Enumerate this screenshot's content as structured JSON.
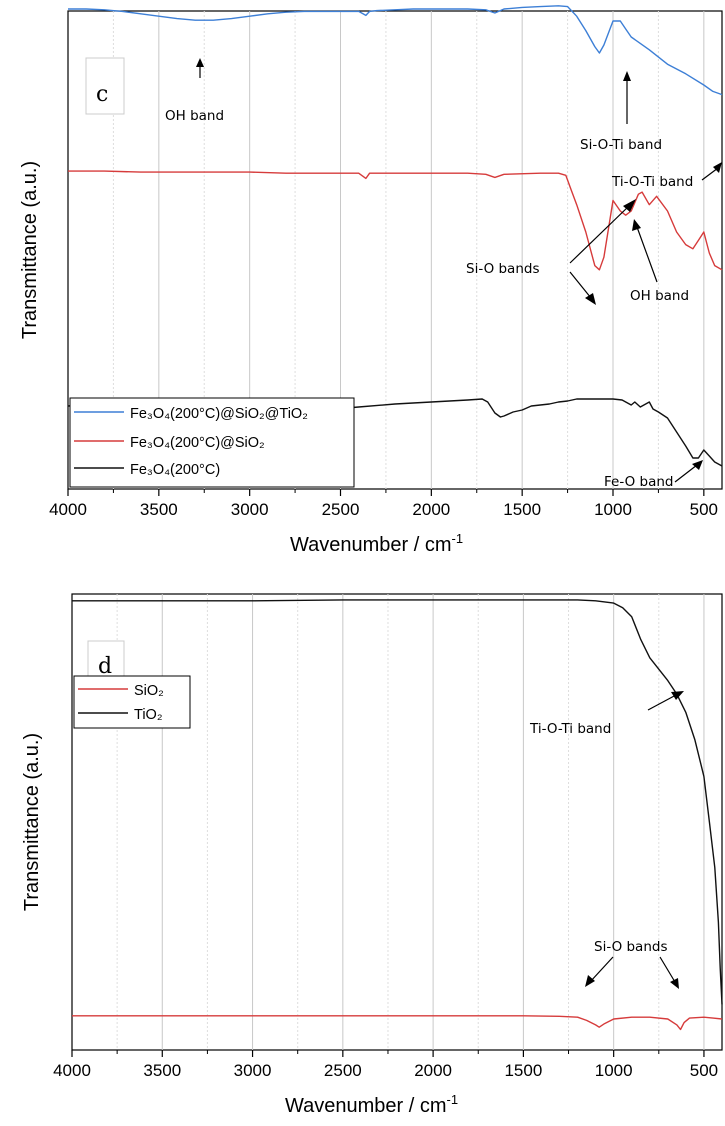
{
  "chart_data": [
    {
      "type": "line",
      "panel_label": "c",
      "xlabel": "Wavenumber / cm",
      "xlabel_sup": "-1",
      "ylabel": "Transmittance (a.u.)",
      "xlim": [
        4000,
        400
      ],
      "x_reversed": true,
      "x_ticks": [
        4000,
        3500,
        3000,
        2500,
        2000,
        1500,
        1000,
        500
      ],
      "grid": "vertical",
      "y_ticks": "none",
      "legend_position": "bottom-left",
      "legend": [
        {
          "label": "Fe₃O₄(200°C)@SiO₂@TiO₂",
          "color": "#3d7fd6"
        },
        {
          "label": "Fe₃O₄(200°C)@SiO₂",
          "color": "#d63b3b"
        },
        {
          "label": "Fe₃O₄(200°C)",
          "color": "#111111"
        }
      ],
      "series": [
        {
          "name": "Fe₃O₄(200°C)@SiO₂@TiO₂",
          "color": "#3d7fd6",
          "offset": 2,
          "x": [
            4000,
            3900,
            3800,
            3700,
            3600,
            3500,
            3400,
            3300,
            3200,
            3100,
            3000,
            2900,
            2800,
            2700,
            2600,
            2500,
            2400,
            2360,
            2340,
            2300,
            2200,
            2100,
            2000,
            1900,
            1800,
            1700,
            1650,
            1600,
            1500,
            1400,
            1300,
            1250,
            1200,
            1150,
            1100,
            1075,
            1050,
            1000,
            960,
            930,
            900,
            850,
            800,
            700,
            600,
            500,
            450,
            400
          ],
          "y": [
            0.975,
            0.975,
            0.97,
            0.96,
            0.945,
            0.93,
            0.915,
            0.905,
            0.905,
            0.915,
            0.93,
            0.945,
            0.955,
            0.96,
            0.96,
            0.96,
            0.96,
            0.935,
            0.96,
            0.965,
            0.97,
            0.975,
            0.975,
            0.975,
            0.975,
            0.97,
            0.95,
            0.975,
            0.985,
            0.99,
            0.995,
            0.99,
            0.93,
            0.84,
            0.74,
            0.7,
            0.75,
            0.9,
            0.9,
            0.85,
            0.8,
            0.76,
            0.72,
            0.63,
            0.57,
            0.5,
            0.46,
            0.44
          ]
        },
        {
          "name": "Fe₃O₄(200°C)@SiO₂",
          "color": "#d63b3b",
          "offset": 1,
          "x": [
            4000,
            3800,
            3600,
            3400,
            3200,
            3000,
            2800,
            2600,
            2400,
            2360,
            2340,
            2300,
            2000,
            1800,
            1700,
            1650,
            1600,
            1400,
            1300,
            1260,
            1230,
            1200,
            1150,
            1100,
            1075,
            1050,
            1000,
            960,
            930,
            900,
            860,
            840,
            800,
            760,
            700,
            650,
            600,
            560,
            530,
            500,
            470,
            440,
            400
          ],
          "y": [
            0.79,
            0.79,
            0.785,
            0.785,
            0.785,
            0.785,
            0.78,
            0.78,
            0.78,
            0.755,
            0.78,
            0.78,
            0.78,
            0.78,
            0.775,
            0.76,
            0.775,
            0.78,
            0.78,
            0.77,
            0.7,
            0.63,
            0.5,
            0.34,
            0.32,
            0.38,
            0.65,
            0.6,
            0.58,
            0.6,
            0.68,
            0.69,
            0.63,
            0.67,
            0.6,
            0.5,
            0.44,
            0.42,
            0.46,
            0.5,
            0.4,
            0.34,
            0.32
          ]
        },
        {
          "name": "Fe₃O₄(200°C)",
          "color": "#111111",
          "offset": 0,
          "x": [
            4000,
            3900,
            3800,
            3700,
            3600,
            3500,
            3400,
            3300,
            3200,
            3100,
            3000,
            2900,
            2800,
            2600,
            2400,
            2200,
            2000,
            1800,
            1720,
            1690,
            1650,
            1620,
            1600,
            1550,
            1500,
            1450,
            1400,
            1350,
            1300,
            1250,
            1200,
            1150,
            1100,
            1050,
            1000,
            950,
            900,
            880,
            850,
            800,
            780,
            750,
            700,
            650,
            600,
            560,
            530,
            500,
            470,
            440,
            400
          ],
          "y": [
            0.58,
            0.585,
            0.59,
            0.59,
            0.57,
            0.545,
            0.525,
            0.51,
            0.51,
            0.515,
            0.525,
            0.535,
            0.545,
            0.56,
            0.575,
            0.59,
            0.6,
            0.61,
            0.615,
            0.6,
            0.545,
            0.525,
            0.53,
            0.55,
            0.56,
            0.58,
            0.585,
            0.59,
            0.6,
            0.605,
            0.615,
            0.615,
            0.615,
            0.615,
            0.615,
            0.61,
            0.585,
            0.6,
            0.575,
            0.6,
            0.565,
            0.55,
            0.52,
            0.45,
            0.38,
            0.32,
            0.32,
            0.36,
            0.33,
            0.3,
            0.28
          ]
        }
      ],
      "annotations": [
        {
          "text": "OH band",
          "x": 3270,
          "y_series": 0
        },
        {
          "text": "Si-O-Ti band",
          "x": 960,
          "y_series": 0
        },
        {
          "text": "Ti-O-Ti band",
          "x": 410,
          "y_series": 0
        },
        {
          "text": "Si-O bands",
          "x": 1070,
          "y_series": 1
        },
        {
          "text": "OH band",
          "x": 960,
          "y_series": 1
        },
        {
          "text": "Fe-O band",
          "x": 530,
          "y_series": 2
        }
      ]
    },
    {
      "type": "line",
      "panel_label": "d",
      "xlabel": "Wavenumber / cm",
      "xlabel_sup": "-1",
      "ylabel": "Transmittance (a.u.)",
      "xlim": [
        4000,
        400
      ],
      "x_reversed": true,
      "x_ticks": [
        4000,
        3500,
        3000,
        2500,
        2000,
        1500,
        1000,
        500
      ],
      "grid": "vertical",
      "y_ticks": "none",
      "legend_position": "top-left",
      "legend": [
        {
          "label": "SiO₂",
          "color": "#d63b3b"
        },
        {
          "label": "TiO₂",
          "color": "#111111"
        }
      ],
      "series": [
        {
          "name": "SiO₂",
          "color": "#d63b3b",
          "x": [
            4000,
            3500,
            3000,
            2500,
            2000,
            1500,
            1300,
            1200,
            1150,
            1100,
            1080,
            1050,
            1000,
            900,
            800,
            700,
            650,
            630,
            610,
            580,
            500,
            450,
            400
          ],
          "y": [
            0.075,
            0.075,
            0.075,
            0.075,
            0.075,
            0.075,
            0.074,
            0.072,
            0.065,
            0.055,
            0.05,
            0.058,
            0.068,
            0.072,
            0.072,
            0.068,
            0.055,
            0.045,
            0.06,
            0.07,
            0.072,
            0.07,
            0.068
          ]
        },
        {
          "name": "TiO₂",
          "color": "#111111",
          "x": [
            4000,
            3500,
            3000,
            2500,
            2000,
            1500,
            1200,
            1100,
            1000,
            950,
            900,
            850,
            800,
            750,
            700,
            650,
            600,
            550,
            500,
            470,
            440,
            420,
            410,
            400
          ],
          "y": [
            0.985,
            0.985,
            0.985,
            0.987,
            0.987,
            0.987,
            0.987,
            0.985,
            0.98,
            0.97,
            0.95,
            0.9,
            0.86,
            0.835,
            0.81,
            0.78,
            0.74,
            0.68,
            0.6,
            0.5,
            0.4,
            0.28,
            0.18,
            0.1
          ]
        }
      ],
      "annotations": [
        {
          "text": "Ti-O-Ti band",
          "x": 750,
          "y_series": 1
        },
        {
          "text": "Si-O bands",
          "x": 1080,
          "y_series": 0
        },
        {
          "text": "Si-O bands",
          "x": 620,
          "y_series": 0
        }
      ]
    }
  ]
}
